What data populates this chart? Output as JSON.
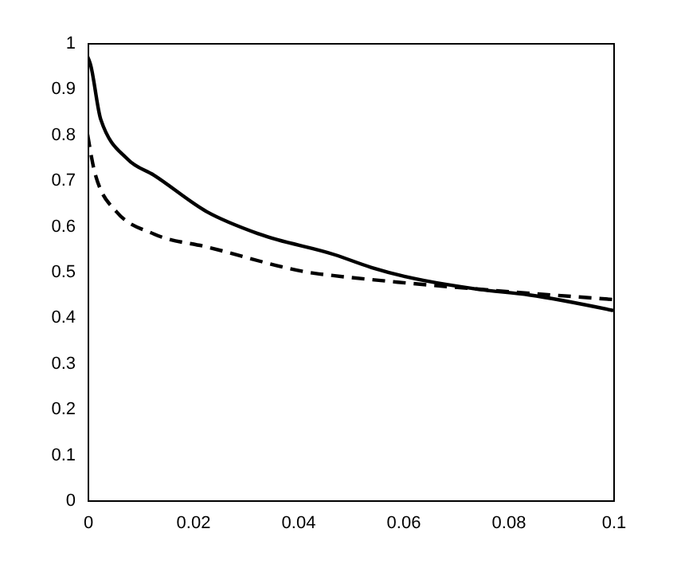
{
  "chart_data": {
    "type": "line",
    "xlim": [
      0,
      0.1
    ],
    "ylim": [
      0,
      1
    ],
    "xticks": [
      0,
      0.02,
      0.04,
      0.06,
      0.08,
      0.1
    ],
    "yticks": [
      0,
      0.1,
      0.2,
      0.3,
      0.4,
      0.5,
      0.6,
      0.7,
      0.8,
      0.9,
      1
    ],
    "grid": false,
    "marker": "none",
    "series": [
      {
        "color": "#000000",
        "line_style": "solid",
        "x": [
          0,
          0.0005,
          0.0025,
          0.0076,
          0.0126,
          0.0227,
          0.0327,
          0.047,
          0.054,
          0.074,
          0.084,
          0.1
        ],
        "values": [
          0.97,
          0.955,
          0.833,
          0.746,
          0.711,
          0.631,
          0.582,
          0.537,
          0.509,
          0.462,
          0.449,
          0.415
        ]
      },
      {
        "color": "#000000",
        "line_style": "dashed",
        "x": [
          0,
          0.0015,
          0.0055,
          0.0127,
          0.0227,
          0.044,
          0.047,
          0.059,
          0.074,
          0.1
        ],
        "values": [
          0.8,
          0.711,
          0.631,
          0.582,
          0.554,
          0.495,
          0.491,
          0.477,
          0.462,
          0.439
        ]
      }
    ]
  }
}
